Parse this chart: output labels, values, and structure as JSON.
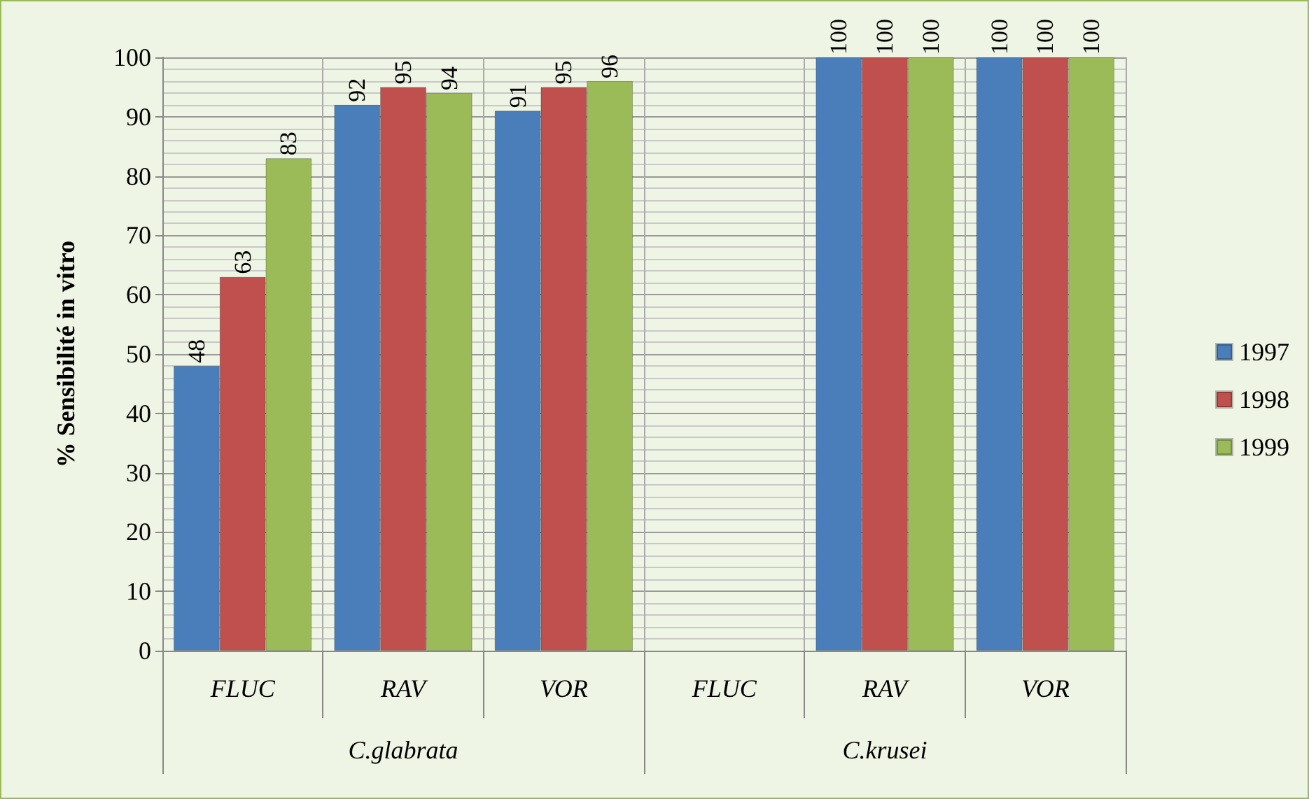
{
  "chart_data": {
    "type": "bar",
    "ylabel": "% Sensibilité in vitro",
    "categories": [
      "FLUC",
      "RAV",
      "VOR",
      "FLUC",
      "RAV",
      "VOR"
    ],
    "series": [
      {
        "name": "1997",
        "color": "#4a7ebb",
        "values": [
          48,
          92,
          91,
          null,
          100,
          100
        ]
      },
      {
        "name": "1998",
        "color": "#c0504d",
        "values": [
          63,
          95,
          95,
          null,
          100,
          100
        ]
      },
      {
        "name": "1999",
        "color": "#9bbb59",
        "values": [
          83,
          94,
          96,
          null,
          100,
          100
        ]
      }
    ],
    "ylim": [
      0,
      100
    ],
    "yticks": [
      0,
      10,
      20,
      30,
      40,
      50,
      60,
      70,
      80,
      90,
      100
    ],
    "grid": true,
    "legend": "right",
    "data_labels": true,
    "annotations": [
      "C.glabrata",
      "C.krusei"
    ]
  }
}
